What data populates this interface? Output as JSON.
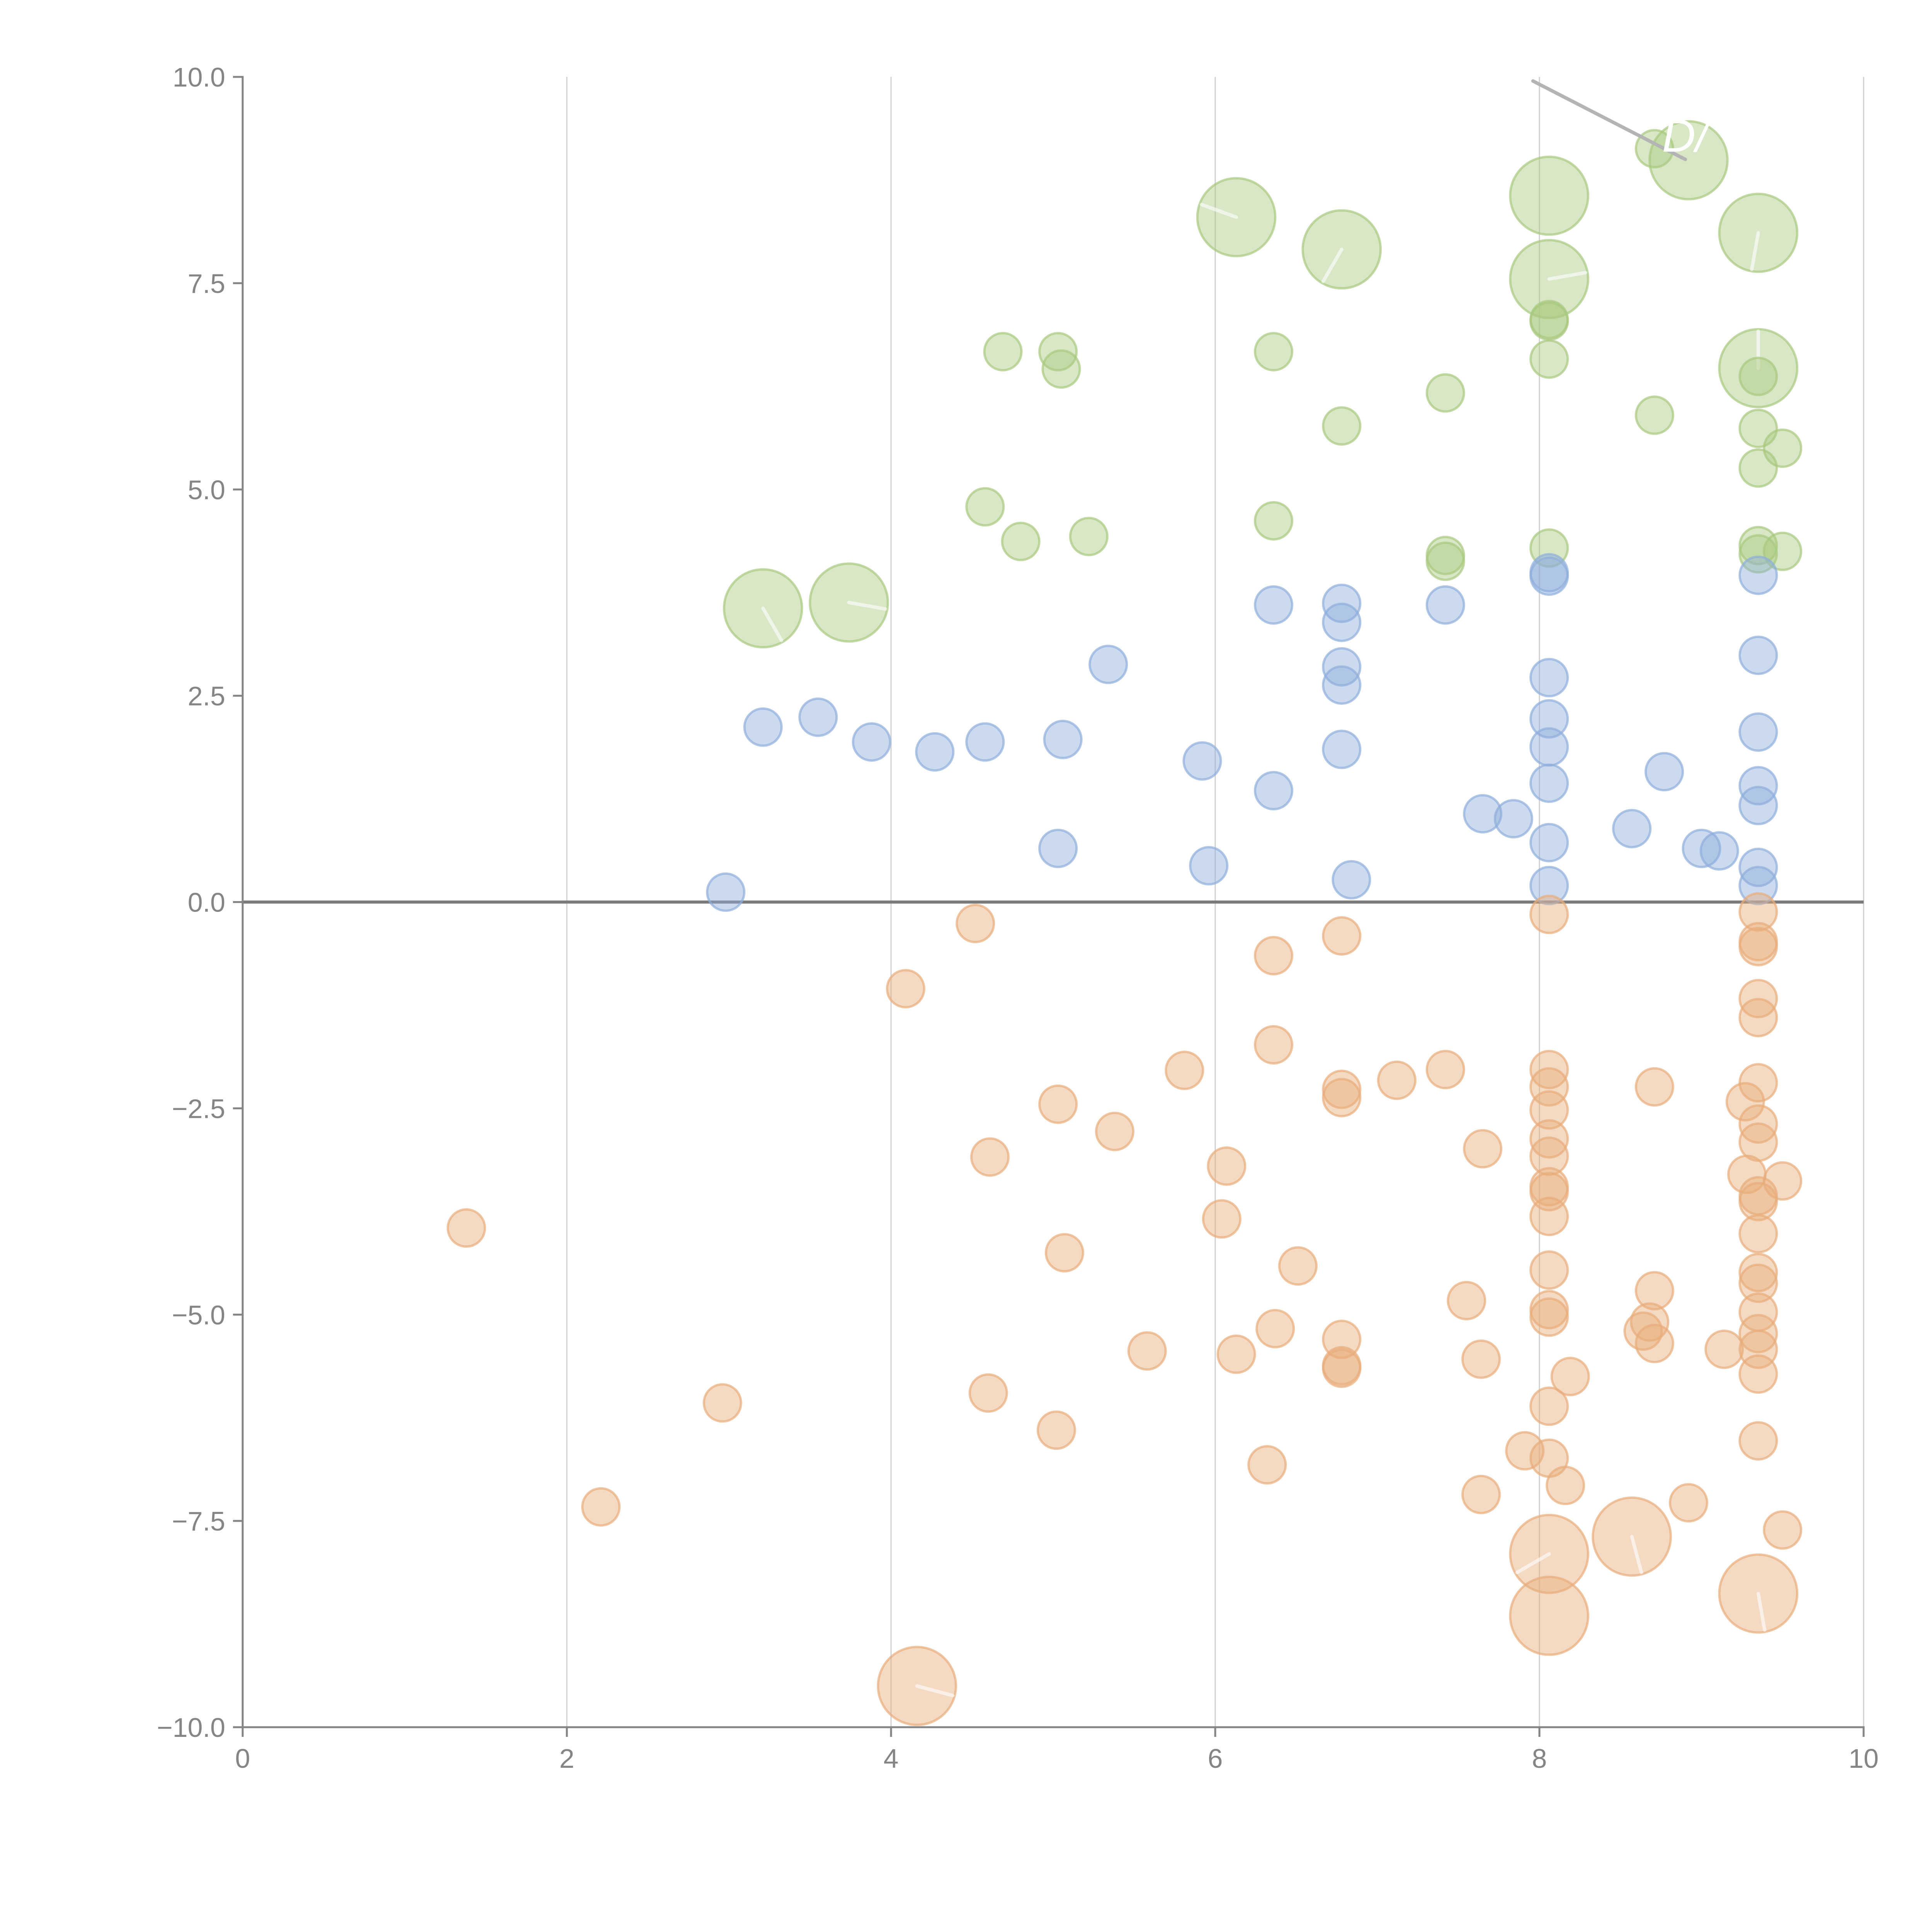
{
  "chart_data": {
    "type": "scatter",
    "title": "",
    "xlabel": "",
    "ylabel": "",
    "xlim": [
      0,
      10
    ],
    "ylim": [
      -10,
      10
    ],
    "grid": "vertical",
    "xticks": [
      "0",
      "2",
      "4",
      "6",
      "8",
      "10"
    ],
    "xtick_values": [
      0,
      2,
      4,
      6,
      8,
      10
    ],
    "yticks": [
      "10.0",
      "7.5",
      "5.0",
      "2.5",
      "0.0",
      "−2.5",
      "−5.0",
      "−7.5",
      "−10.0"
    ],
    "ytick_values": [
      10,
      7.5,
      5,
      2.5,
      0,
      -2.5,
      -5,
      -7.5,
      -10
    ],
    "reference_line_y": 0,
    "annotation": {
      "text": "D/",
      "from": [
        7.96,
        9.95
      ],
      "to": [
        8.9,
        9.0
      ]
    },
    "size_legend": {
      "small": 1,
      "large": 2.1
    },
    "series": [
      {
        "name": "green",
        "color": "#a8c97f",
        "points": [
          [
            3.21,
            3.56,
            2.1,
            -60
          ],
          [
            3.74,
            3.63,
            2.1,
            -10
          ],
          [
            4.69,
            6.67,
            1
          ],
          [
            5.03,
            6.67,
            1
          ],
          [
            5.05,
            6.46,
            1
          ],
          [
            4.58,
            4.79,
            1
          ],
          [
            4.8,
            4.37,
            1
          ],
          [
            5.22,
            4.43,
            1
          ],
          [
            6.13,
            8.3,
            2.1,
            160
          ],
          [
            6.36,
            6.67,
            1
          ],
          [
            6.36,
            4.62,
            1
          ],
          [
            6.78,
            7.91,
            2.1,
            240
          ],
          [
            6.78,
            5.77,
            1
          ],
          [
            7.42,
            6.17,
            1
          ],
          [
            7.42,
            4.2,
            1
          ],
          [
            7.42,
            4.13,
            1
          ],
          [
            8.06,
            8.56,
            2.1
          ],
          [
            8.06,
            7.55,
            2.1,
            10
          ],
          [
            8.06,
            7.06,
            1
          ],
          [
            8.06,
            7.04,
            1
          ],
          [
            8.06,
            6.58,
            1
          ],
          [
            8.06,
            4.29,
            1
          ],
          [
            8.71,
            9.13,
            1
          ],
          [
            8.92,
            8.99,
            2.1
          ],
          [
            8.71,
            5.9,
            1
          ],
          [
            9.35,
            8.11,
            2.1,
            260
          ],
          [
            9.35,
            6.47,
            2.1,
            90
          ],
          [
            9.35,
            6.37,
            1
          ],
          [
            9.35,
            5.74,
            1
          ],
          [
            9.5,
            5.5,
            1
          ],
          [
            9.35,
            5.26,
            1
          ],
          [
            9.35,
            4.32,
            1
          ],
          [
            9.35,
            4.22,
            1
          ],
          [
            9.5,
            4.25,
            1
          ]
        ]
      },
      {
        "name": "blue",
        "color": "#8eaedb",
        "points": [
          [
            2.98,
            0.12,
            1
          ],
          [
            3.21,
            2.12,
            1
          ],
          [
            3.55,
            2.24,
            1
          ],
          [
            3.88,
            1.94,
            1
          ],
          [
            4.27,
            1.82,
            1
          ],
          [
            4.58,
            1.94,
            1
          ],
          [
            5.06,
            1.97,
            1
          ],
          [
            5.34,
            2.88,
            1
          ],
          [
            5.03,
            0.65,
            1
          ],
          [
            5.92,
            1.71,
            1
          ],
          [
            5.96,
            0.44,
            1
          ],
          [
            6.36,
            3.6,
            1
          ],
          [
            6.36,
            1.35,
            1
          ],
          [
            6.78,
            3.62,
            1
          ],
          [
            6.78,
            3.39,
            1
          ],
          [
            6.78,
            2.85,
            1
          ],
          [
            6.78,
            2.63,
            1
          ],
          [
            6.78,
            1.85,
            1
          ],
          [
            6.84,
            0.27,
            1
          ],
          [
            7.42,
            3.6,
            1
          ],
          [
            7.65,
            1.07,
            1
          ],
          [
            7.84,
            1.01,
            1
          ],
          [
            8.06,
            3.99,
            1
          ],
          [
            8.06,
            3.95,
            1
          ],
          [
            8.06,
            2.72,
            1
          ],
          [
            8.06,
            2.22,
            1
          ],
          [
            8.06,
            1.88,
            1
          ],
          [
            8.06,
            1.44,
            1
          ],
          [
            8.06,
            0.72,
            1
          ],
          [
            8.06,
            0.2,
            1
          ],
          [
            8.57,
            0.89,
            1
          ],
          [
            8.77,
            1.58,
            1
          ],
          [
            9.0,
            0.65,
            1
          ],
          [
            9.11,
            0.62,
            1
          ],
          [
            9.35,
            3.96,
            1
          ],
          [
            9.35,
            2.99,
            1
          ],
          [
            9.35,
            2.06,
            1
          ],
          [
            9.35,
            1.41,
            1
          ],
          [
            9.35,
            1.17,
            1
          ],
          [
            9.35,
            0.42,
            1
          ],
          [
            9.35,
            0.2,
            1
          ]
        ]
      },
      {
        "name": "orange",
        "color": "#e8ad7a",
        "points": [
          [
            1.38,
            -3.95,
            1
          ],
          [
            2.21,
            -7.33,
            1
          ],
          [
            2.96,
            -6.07,
            1
          ],
          [
            4.09,
            -1.05,
            1
          ],
          [
            4.16,
            -9.5,
            2.1,
            -15
          ],
          [
            4.52,
            -0.26,
            1
          ],
          [
            4.6,
            -5.95,
            1
          ],
          [
            4.61,
            -3.09,
            1
          ],
          [
            5.03,
            -2.45,
            1
          ],
          [
            5.02,
            -6.4,
            1
          ],
          [
            5.07,
            -4.25,
            1
          ],
          [
            5.38,
            -2.78,
            1
          ],
          [
            5.58,
            -5.44,
            1
          ],
          [
            5.81,
            -2.04,
            1
          ],
          [
            6.04,
            -3.84,
            1
          ],
          [
            6.07,
            -3.2,
            1
          ],
          [
            6.13,
            -5.48,
            1
          ],
          [
            6.32,
            -6.82,
            1
          ],
          [
            6.36,
            -0.65,
            1
          ],
          [
            6.36,
            -1.73,
            1
          ],
          [
            6.37,
            -5.17,
            1
          ],
          [
            6.51,
            -4.41,
            1
          ],
          [
            6.78,
            -0.41,
            1
          ],
          [
            6.78,
            -2.27,
            1
          ],
          [
            6.78,
            -2.37,
            1
          ],
          [
            6.78,
            -5.3,
            1
          ],
          [
            6.78,
            -5.62,
            1
          ],
          [
            6.78,
            -5.65,
            1
          ],
          [
            7.12,
            -2.16,
            1
          ],
          [
            7.42,
            -2.03,
            1
          ],
          [
            7.55,
            -4.83,
            1
          ],
          [
            7.65,
            -2.99,
            1
          ],
          [
            7.64,
            -5.54,
            1
          ],
          [
            7.64,
            -7.18,
            1
          ],
          [
            7.91,
            -6.65,
            1
          ],
          [
            8.06,
            -0.15,
            1
          ],
          [
            8.06,
            -2.03,
            1
          ],
          [
            8.06,
            -2.24,
            1
          ],
          [
            8.06,
            -2.52,
            1
          ],
          [
            8.06,
            -2.87,
            1
          ],
          [
            8.06,
            -3.08,
            1
          ],
          [
            8.06,
            -3.45,
            1
          ],
          [
            8.06,
            -3.51,
            1
          ],
          [
            8.06,
            -3.81,
            1
          ],
          [
            8.06,
            -4.46,
            1
          ],
          [
            8.06,
            -4.94,
            1
          ],
          [
            8.06,
            -5.03,
            1
          ],
          [
            8.06,
            -6.11,
            1
          ],
          [
            8.06,
            -6.74,
            1
          ],
          [
            8.16,
            -7.07,
            1
          ],
          [
            8.19,
            -5.75,
            1
          ],
          [
            8.06,
            -7.9,
            2.1,
            210
          ],
          [
            8.06,
            -8.65,
            2.1
          ],
          [
            8.57,
            -7.69,
            2.1,
            -75
          ],
          [
            8.64,
            -5.2,
            1
          ],
          [
            8.68,
            -5.09,
            1
          ],
          [
            8.71,
            -4.71,
            1
          ],
          [
            8.71,
            -5.35,
            1
          ],
          [
            8.71,
            -2.24,
            1
          ],
          [
            8.92,
            -7.28,
            1
          ],
          [
            9.14,
            -5.42,
            1
          ],
          [
            9.27,
            -2.42,
            1
          ],
          [
            9.28,
            -3.3,
            1
          ],
          [
            9.35,
            -0.12,
            1
          ],
          [
            9.35,
            -0.48,
            1
          ],
          [
            9.35,
            -0.54,
            1
          ],
          [
            9.35,
            -1.17,
            1
          ],
          [
            9.35,
            -1.4,
            1
          ],
          [
            9.35,
            -2.19,
            1
          ],
          [
            9.35,
            -2.69,
            1
          ],
          [
            9.35,
            -2.91,
            1
          ],
          [
            9.35,
            -3.56,
            1
          ],
          [
            9.35,
            -3.63,
            1
          ],
          [
            9.5,
            -3.38,
            1
          ],
          [
            9.35,
            -4.02,
            1
          ],
          [
            9.35,
            -4.49,
            1
          ],
          [
            9.35,
            -4.62,
            1
          ],
          [
            9.35,
            -4.97,
            1
          ],
          [
            9.35,
            -5.23,
            1
          ],
          [
            9.35,
            -5.42,
            1
          ],
          [
            9.35,
            -5.72,
            1
          ],
          [
            9.35,
            -6.53,
            1
          ],
          [
            9.5,
            -7.61,
            1
          ],
          [
            9.35,
            -8.38,
            2.1,
            -80
          ]
        ]
      }
    ]
  }
}
